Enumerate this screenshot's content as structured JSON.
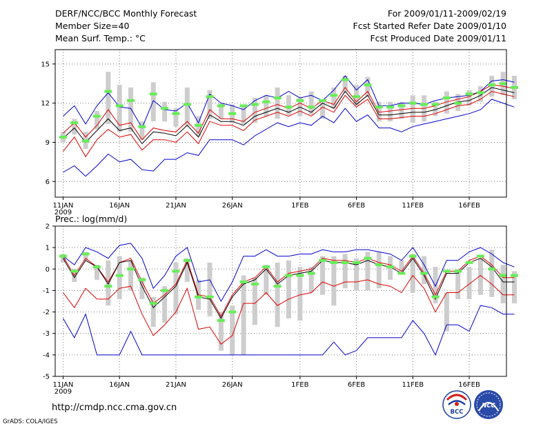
{
  "header": {
    "left": [
      "DERF/NCC/BCC Monthly Forecast",
      "Member Size=40",
      "Mean Surf. Temp.: °C"
    ],
    "right": [
      "For 2009/01/11-2009/02/19",
      "Fcst Started Refer Date 2009/01/10",
      "Fcst Produced Date 2009/01/11"
    ]
  },
  "footer": {
    "url": "http://cmdp.ncc.cma.gov.cn",
    "grads": "GrADS: COLA/IGES",
    "logo_bcc": "BCC",
    "logo_ncc": "NCC"
  },
  "colors": {
    "box": "#cdcdcd",
    "green": "#66ee55",
    "black": "#000000",
    "red": "#dd0000",
    "blue": "#0000cc",
    "grid": "#777777"
  },
  "chart_data": [
    {
      "id": "temp",
      "type": "line",
      "ylabel": "Mean Surf. Temp.: °C",
      "ylim": [
        4.8,
        16.1
      ],
      "yticks": [
        6,
        9,
        12,
        15
      ],
      "xlim": [
        0.3,
        40.3
      ],
      "x_ticks": [
        {
          "day": 1,
          "label": "11JAN",
          "sub": "2009"
        },
        {
          "day": 6,
          "label": "16JAN"
        },
        {
          "day": 11,
          "label": "21JAN"
        },
        {
          "day": 16,
          "label": "26JAN"
        },
        {
          "day": 22,
          "label": "1FEB"
        },
        {
          "day": 27,
          "label": "6FEB"
        },
        {
          "day": 32,
          "label": "11FEB"
        },
        {
          "day": 37,
          "label": "16FEB"
        }
      ],
      "box_low": [
        9.0,
        9.6,
        8.5,
        10.0,
        10.4,
        9.8,
        9.8,
        9.2,
        10.6,
        10.6,
        10.2,
        10.2,
        9.5,
        10.8,
        10.8,
        10.5,
        10.4,
        10.5,
        11.0,
        10.8,
        11.1,
        11.0,
        11.1,
        10.8,
        11.6,
        12.8,
        11.8,
        12.5,
        10.6,
        10.6,
        10.8,
        10.5,
        10.6,
        11.0,
        11.2,
        11.4,
        11.8,
        12.1,
        12.5,
        12.6,
        12.3
      ],
      "box_high": [
        9.8,
        10.8,
        9.8,
        11.4,
        14.4,
        13.4,
        13.2,
        10.6,
        13.6,
        12.1,
        11.6,
        13.2,
        11.0,
        13.0,
        12.0,
        11.9,
        11.7,
        12.4,
        12.6,
        13.2,
        12.6,
        12.4,
        12.9,
        12.2,
        13.2,
        14.1,
        13.4,
        14.0,
        12.1,
        12.1,
        12.1,
        12.6,
        12.6,
        12.1,
        12.9,
        12.7,
        13.0,
        13.3,
        14.1,
        14.4,
        14.1
      ],
      "green": [
        9.4,
        10.5,
        9.1,
        11.0,
        12.9,
        11.8,
        12.2,
        10.2,
        12.7,
        11.6,
        11.2,
        11.9,
        10.3,
        12.5,
        11.8,
        11.2,
        11.8,
        11.9,
        12.1,
        12.4,
        11.7,
        12.2,
        11.7,
        12.2,
        12.6,
        13.8,
        12.5,
        13.4,
        11.7,
        11.7,
        11.8,
        12.0,
        11.9,
        11.9,
        12.4,
        12.0,
        12.7,
        12.8,
        13.4,
        13.5,
        13.2
      ],
      "mean": [
        9.3,
        10.1,
        9.0,
        9.9,
        10.8,
        9.9,
        10.1,
        8.9,
        9.8,
        9.7,
        9.5,
        10.3,
        9.4,
        11.1,
        10.6,
        10.6,
        10.3,
        11.0,
        11.3,
        11.6,
        11.3,
        11.7,
        11.3,
        12.0,
        11.6,
        12.9,
        11.9,
        12.6,
        11.1,
        11.1,
        11.2,
        11.3,
        11.3,
        11.5,
        11.8,
        12.1,
        12.2,
        12.6,
        13.2,
        13.0,
        12.8
      ],
      "upper_red": [
        9.7,
        10.5,
        9.4,
        10.3,
        11.5,
        10.3,
        10.5,
        9.2,
        10.1,
        9.9,
        9.8,
        10.6,
        9.7,
        11.5,
        10.8,
        10.8,
        10.6,
        11.3,
        11.6,
        11.9,
        11.6,
        12.0,
        11.6,
        12.2,
        11.9,
        13.2,
        12.1,
        12.9,
        11.3,
        11.4,
        11.5,
        11.6,
        11.6,
        11.8,
        12.1,
        12.3,
        12.5,
        12.9,
        13.4,
        13.3,
        13.1
      ],
      "lower_red": [
        8.3,
        9.4,
        7.9,
        9.2,
        10.0,
        9.4,
        9.6,
        8.4,
        9.2,
        9.2,
        9.0,
        9.8,
        8.9,
        10.6,
        10.3,
        10.3,
        9.9,
        10.7,
        11.0,
        11.3,
        11.0,
        11.4,
        11.0,
        11.7,
        11.3,
        12.6,
        11.7,
        12.3,
        10.8,
        10.8,
        10.9,
        11.0,
        11.0,
        11.2,
        11.5,
        11.8,
        11.9,
        12.3,
        12.9,
        12.7,
        12.5
      ],
      "max_blue": [
        11.0,
        11.8,
        10.4,
        11.8,
        12.8,
        11.7,
        11.6,
        10.1,
        12.2,
        11.5,
        11.4,
        12.0,
        10.5,
        12.7,
        12.0,
        11.8,
        11.5,
        12.2,
        12.6,
        12.4,
        12.9,
        12.4,
        12.6,
        12.2,
        13.0,
        14.1,
        13.0,
        13.8,
        11.8,
        11.8,
        12.0,
        12.0,
        11.9,
        12.2,
        12.4,
        12.5,
        12.6,
        12.9,
        13.7,
        13.8,
        13.6
      ],
      "min_blue": [
        6.7,
        7.2,
        6.4,
        7.2,
        8.1,
        7.5,
        7.7,
        6.9,
        6.8,
        7.7,
        7.7,
        8.2,
        8.0,
        9.2,
        9.2,
        9.2,
        8.8,
        9.5,
        10.0,
        10.5,
        10.2,
        10.5,
        10.3,
        11.0,
        10.5,
        11.6,
        10.6,
        11.1,
        10.1,
        10.1,
        9.8,
        10.2,
        10.4,
        10.6,
        10.8,
        11.0,
        11.2,
        11.5,
        12.3,
        12.0,
        11.7
      ]
    },
    {
      "id": "prec",
      "type": "line",
      "title": "Prec.: log(mm/d)",
      "ylim": [
        -5,
        2
      ],
      "yticks": [
        -5,
        -4,
        -3,
        -2,
        -1,
        0,
        1,
        2
      ],
      "xlim": [
        0.3,
        40.3
      ],
      "x_ticks": [
        {
          "day": 1,
          "label": "11JAN",
          "sub": "2009"
        },
        {
          "day": 6,
          "label": "16JAN"
        },
        {
          "day": 11,
          "label": "21JAN"
        },
        {
          "day": 16,
          "label": "26JAN"
        },
        {
          "day": 22,
          "label": "1FEB"
        },
        {
          "day": 27,
          "label": "6FEB"
        },
        {
          "day": 32,
          "label": "11FEB"
        },
        {
          "day": 37,
          "label": "16FEB"
        }
      ],
      "box_low": [
        0.3,
        -0.6,
        0.4,
        -0.5,
        -1.7,
        -1.4,
        -1.0,
        -1.4,
        -2.7,
        -2.5,
        -2.1,
        -0.6,
        -1.9,
        -2.2,
        -3.8,
        -4.0,
        -4.0,
        -2.6,
        -1.2,
        -2.7,
        -2.3,
        -2.4,
        -1.1,
        -1.2,
        -1.7,
        -0.9,
        -1.0,
        -1.0,
        -0.9,
        -0.5,
        -0.2,
        -1.1,
        -0.7,
        -1.6,
        -2.9,
        -1.4,
        -1.4,
        -1.2,
        -1.3,
        -1.6,
        -1.6
      ],
      "box_high": [
        0.7,
        0.0,
        0.8,
        0.2,
        0.4,
        0.6,
        0.4,
        -0.4,
        -1.3,
        -0.8,
        0.3,
        0.5,
        -0.5,
        0.3,
        -2.0,
        -1.7,
        -0.3,
        -0.4,
        0.2,
        0.3,
        0.4,
        0.1,
        0.1,
        0.6,
        0.6,
        0.7,
        0.5,
        0.8,
        0.8,
        0.6,
        0.4,
        0.7,
        0.6,
        0.1,
        -1.1,
        0.0,
        0.1,
        0.5,
        0.9,
        0.2,
        -0.1
      ],
      "green": [
        0.6,
        -0.1,
        0.7,
        0.1,
        -0.8,
        -0.3,
        0.0,
        -0.5,
        -1.6,
        -1.0,
        -0.1,
        0.4,
        -1.3,
        -1.3,
        -2.4,
        -2.0,
        -0.6,
        -0.7,
        0.1,
        -0.8,
        -0.3,
        -0.3,
        -0.2,
        0.4,
        0.3,
        0.3,
        0.3,
        0.5,
        0.2,
        0.1,
        -0.2,
        0.6,
        -0.2,
        -1.3,
        -0.1,
        -0.1,
        0.3,
        0.6,
        0.0,
        -0.3,
        -0.3
      ],
      "mean": [
        0.5,
        -0.4,
        0.4,
        0.1,
        -0.7,
        0.3,
        0.4,
        -0.8,
        -1.8,
        -1.3,
        -0.8,
        0.3,
        -1.3,
        -1.4,
        -2.3,
        -1.3,
        -0.7,
        -0.5,
        0.0,
        -0.7,
        -0.3,
        -0.2,
        -0.1,
        0.4,
        0.3,
        0.3,
        0.2,
        0.4,
        0.2,
        0.1,
        -0.2,
        0.5,
        -0.3,
        -1.4,
        -0.2,
        -0.2,
        0.3,
        0.5,
        0.1,
        -0.6,
        -0.6
      ],
      "upper_red": [
        0.6,
        -0.3,
        0.5,
        0.1,
        -0.6,
        0.3,
        0.5,
        -0.6,
        -1.6,
        -1.2,
        -0.7,
        0.4,
        -1.2,
        -1.3,
        -2.2,
        -1.2,
        -0.6,
        -0.4,
        0.1,
        -0.6,
        -0.2,
        -0.1,
        0.0,
        0.5,
        0.4,
        0.4,
        0.3,
        0.5,
        0.3,
        0.2,
        -0.1,
        0.6,
        -0.2,
        -1.2,
        -0.1,
        -0.1,
        0.4,
        0.6,
        0.2,
        -0.4,
        -0.4
      ],
      "lower_red": [
        -1.1,
        -1.8,
        -0.9,
        -1.4,
        -1.4,
        -0.9,
        -0.8,
        -2.1,
        -3.1,
        -2.6,
        -2.0,
        -0.9,
        -2.8,
        -2.7,
        -3.5,
        -3.1,
        -1.6,
        -1.6,
        -1.1,
        -1.7,
        -1.4,
        -1.2,
        -1.1,
        -0.6,
        -0.8,
        -0.6,
        -0.6,
        -0.5,
        -0.7,
        -0.8,
        -1.1,
        -0.3,
        -0.9,
        -2.0,
        -1.1,
        -1.1,
        -0.7,
        -0.3,
        -0.7,
        -1.2,
        -1.2
      ],
      "max_blue": [
        0.6,
        0.2,
        1.0,
        0.8,
        0.5,
        1.1,
        1.2,
        0.5,
        -0.9,
        -0.3,
        0.6,
        1.0,
        -0.6,
        -0.5,
        -1.5,
        -0.6,
        0.6,
        0.6,
        0.9,
        0.6,
        0.6,
        0.7,
        0.7,
        0.9,
        0.8,
        0.8,
        0.9,
        0.9,
        0.8,
        0.7,
        0.4,
        1.0,
        0.2,
        -0.8,
        0.4,
        0.4,
        0.8,
        1.0,
        0.7,
        0.3,
        0.1
      ],
      "min_blue": [
        -2.3,
        -3.2,
        -2.1,
        -4.0,
        -4.0,
        -4.0,
        -2.9,
        -4.0,
        -4.0,
        -4.0,
        -4.0,
        -4.0,
        -4.0,
        -4.0,
        -4.0,
        -4.0,
        -4.0,
        -4.0,
        -4.0,
        -4.0,
        -4.0,
        -4.0,
        -4.0,
        -4.0,
        -3.4,
        -4.0,
        -3.8,
        -3.2,
        -3.2,
        -3.2,
        -3.2,
        -2.4,
        -3.0,
        -4.0,
        -2.6,
        -2.6,
        -2.9,
        -1.7,
        -1.8,
        -2.1,
        -2.1
      ]
    }
  ]
}
